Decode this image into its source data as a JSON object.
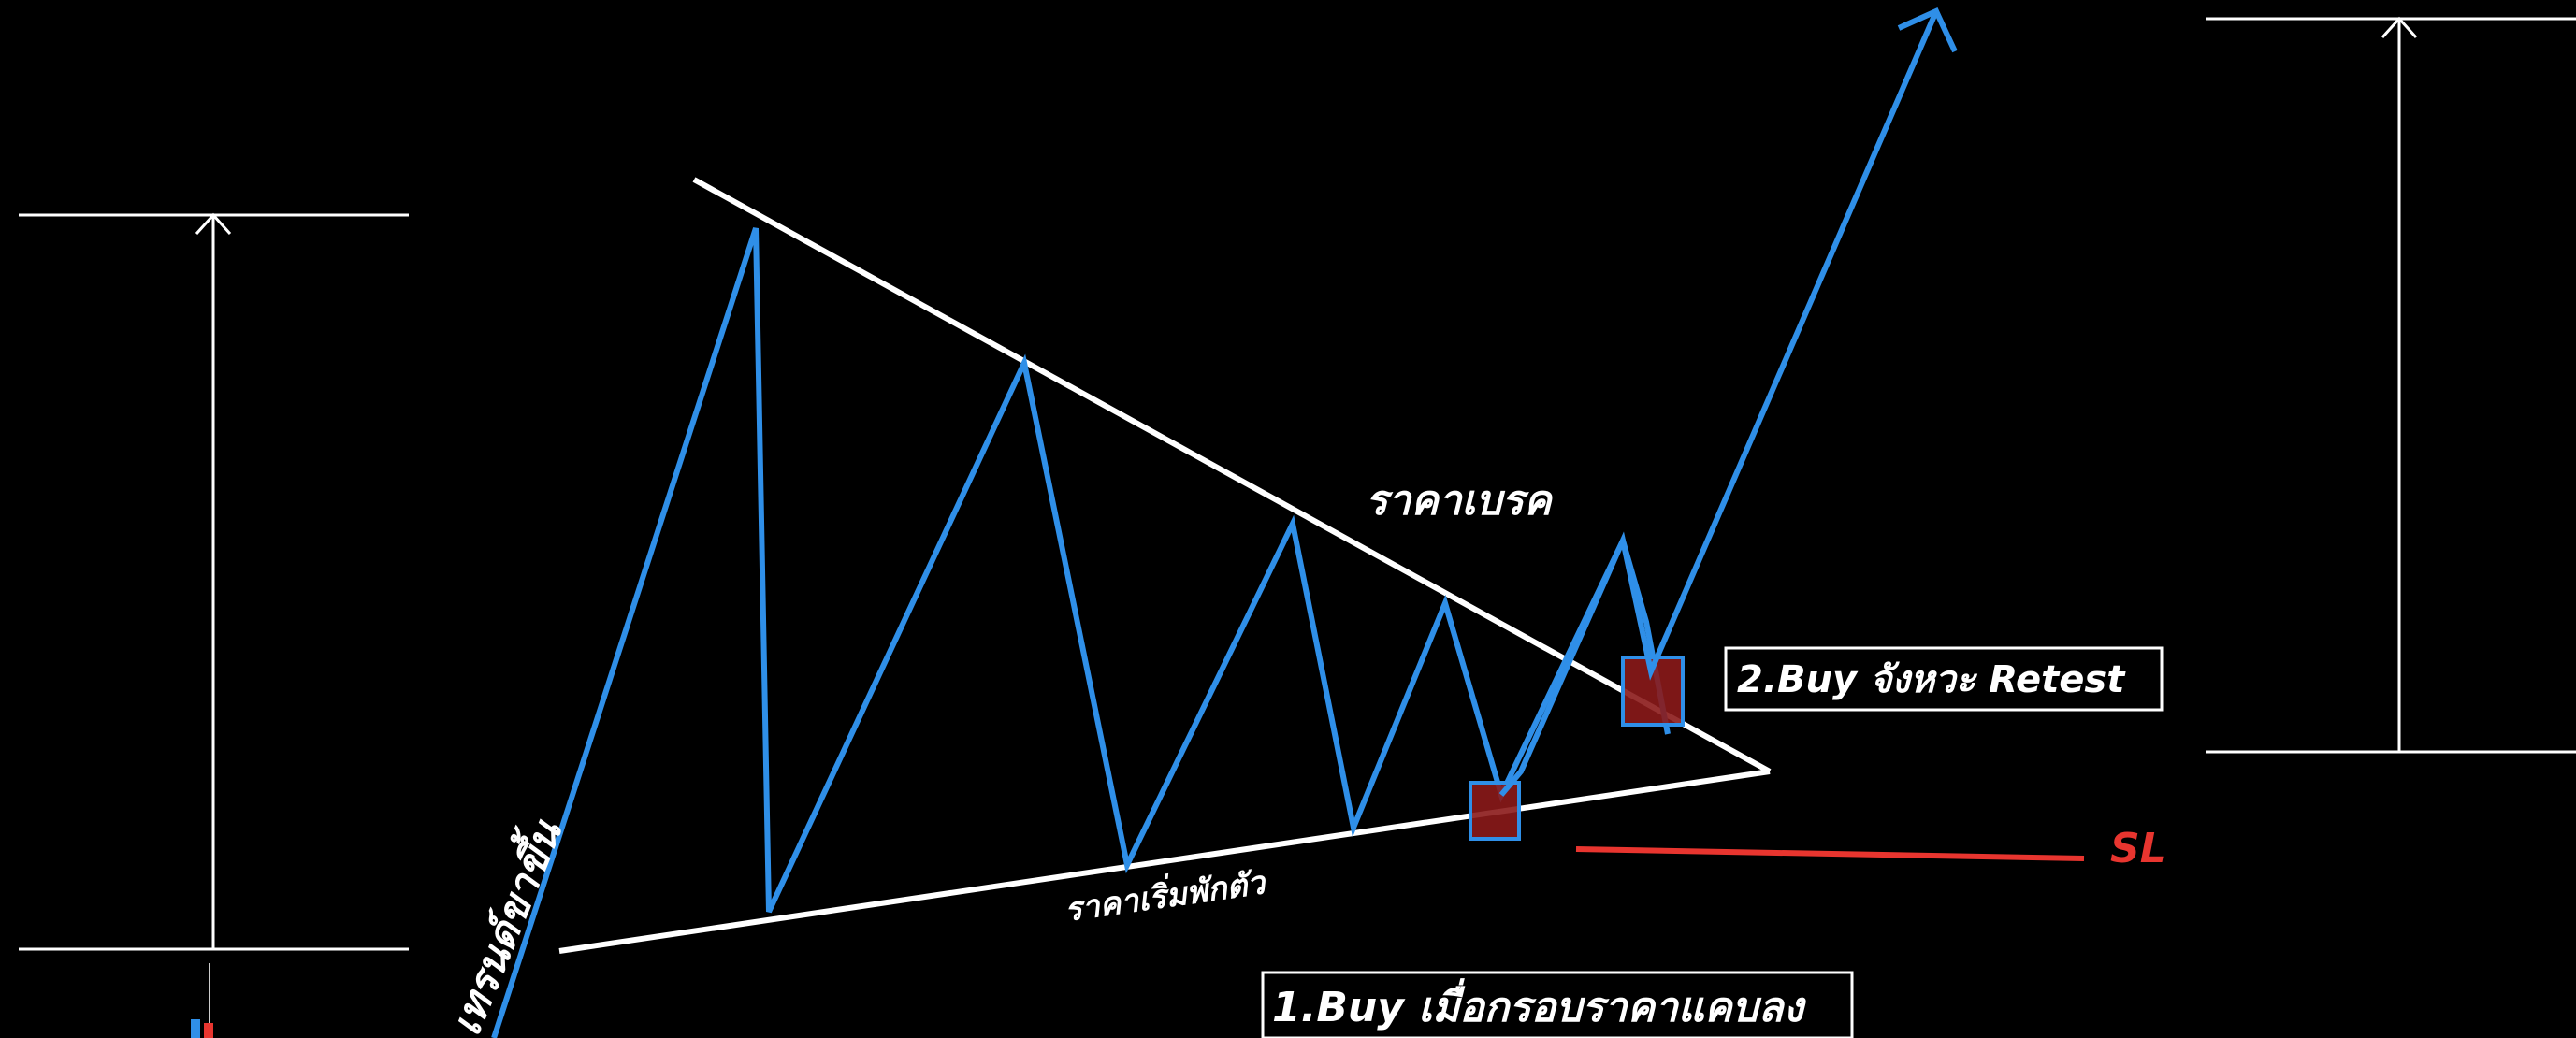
{
  "colors": {
    "background": "#000000",
    "trendline": "#ffffff",
    "zigzag": "#2f8fe8",
    "stop_loss": "#e8352f",
    "entry_fill": "#8b1a1a",
    "entry_border": "#2f8fe8",
    "box_border": "#ffffff",
    "text": "#ffffff"
  },
  "labels": {
    "break": "ราคาเบรค",
    "consolidation": "ราคาเริ่มพักตัว",
    "uptrend": "เทรนด์ขาขึ้น",
    "stop_loss": "SL",
    "buy_retest": "2.Buy จังหวะ Retest",
    "buy_narrow": "1.Buy เมื่อกรอบราคาแคบลง"
  },
  "icons": {
    "target_arrow_left": "up-arrow-icon",
    "target_arrow_right": "up-arrow-icon",
    "breakout_arrow": "arrow-up-right-icon",
    "candle": "candlestick-icon"
  }
}
